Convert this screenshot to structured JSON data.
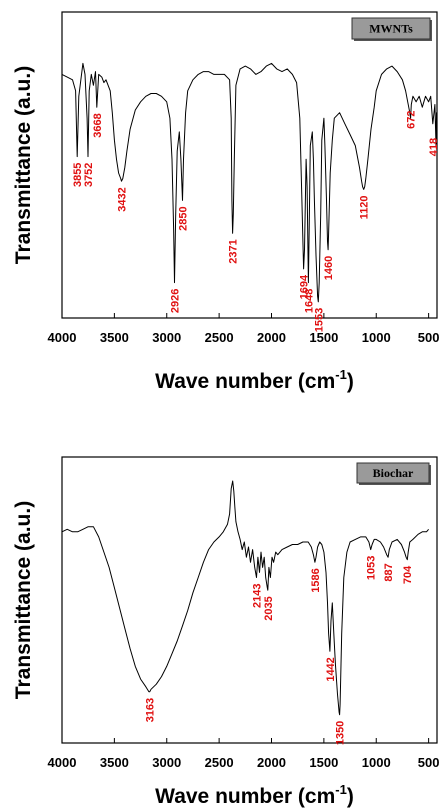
{
  "chart_data": [
    {
      "type": "line",
      "title": "",
      "badge": "MWNTs",
      "xlabel": "Wave number (cm",
      "xlabel_sup": "-1",
      "xlabel_end": ")",
      "ylabel": "Transmittance (a.u.)",
      "xlim": [
        4000,
        420
      ],
      "x_reversed": true,
      "x_ticks": [
        "4000",
        "3500",
        "3000",
        "2500",
        "2000",
        "1500",
        "1000",
        "500"
      ],
      "x_tick_values": [
        4000,
        3500,
        3000,
        2500,
        2000,
        1500,
        1000,
        500
      ],
      "ylim": [
        0,
        1
      ],
      "y_ticks_shown": false,
      "grid": false,
      "line_color": "#000000",
      "label_color": "#e01010",
      "series": [
        {
          "x": [
            4000,
            3950,
            3900,
            3870,
            3855,
            3840,
            3800,
            3780,
            3760,
            3752,
            3740,
            3720,
            3700,
            3680,
            3668,
            3650,
            3620,
            3600,
            3580,
            3560,
            3540,
            3520,
            3500,
            3480,
            3460,
            3440,
            3432,
            3420,
            3400,
            3380,
            3350,
            3300,
            3250,
            3200,
            3150,
            3100,
            3050,
            3000,
            2970,
            2950,
            2935,
            2926,
            2915,
            2900,
            2880,
            2865,
            2850,
            2840,
            2820,
            2800,
            2750,
            2700,
            2650,
            2600,
            2550,
            2500,
            2450,
            2400,
            2385,
            2378,
            2371,
            2365,
            2355,
            2340,
            2300,
            2250,
            2200,
            2150,
            2100,
            2050,
            2000,
            1950,
            1900,
            1850,
            1800,
            1760,
            1730,
            1710,
            1700,
            1694,
            1685,
            1670,
            1660,
            1650,
            1648,
            1640,
            1630,
            1610,
            1600,
            1590,
            1575,
            1560,
            1553,
            1545,
            1530,
            1520,
            1500,
            1490,
            1475,
            1465,
            1460,
            1455,
            1440,
            1420,
            1400,
            1350,
            1300,
            1250,
            1200,
            1160,
            1140,
            1130,
            1120,
            1110,
            1100,
            1080,
            1050,
            1020,
            1000,
            950,
            900,
            850,
            800,
            750,
            720,
            700,
            680,
            672,
            665,
            650,
            620,
            590,
            560,
            530,
            500,
            480,
            460,
            440,
            430,
            425,
            420
          ],
          "y": [
            0.86,
            0.85,
            0.84,
            0.8,
            0.56,
            0.78,
            0.9,
            0.86,
            0.7,
            0.56,
            0.8,
            0.86,
            0.82,
            0.87,
            0.74,
            0.86,
            0.85,
            0.83,
            0.84,
            0.82,
            0.8,
            0.72,
            0.62,
            0.55,
            0.5,
            0.48,
            0.47,
            0.48,
            0.52,
            0.58,
            0.66,
            0.73,
            0.76,
            0.78,
            0.79,
            0.79,
            0.78,
            0.76,
            0.7,
            0.55,
            0.3,
            0.1,
            0.35,
            0.58,
            0.65,
            0.55,
            0.4,
            0.55,
            0.72,
            0.8,
            0.84,
            0.86,
            0.87,
            0.87,
            0.86,
            0.86,
            0.86,
            0.84,
            0.7,
            0.4,
            0.28,
            0.35,
            0.55,
            0.82,
            0.88,
            0.89,
            0.88,
            0.86,
            0.87,
            0.89,
            0.9,
            0.88,
            0.87,
            0.88,
            0.86,
            0.83,
            0.7,
            0.4,
            0.25,
            0.15,
            0.22,
            0.55,
            0.45,
            0.15,
            0.1,
            0.3,
            0.6,
            0.65,
            0.55,
            0.4,
            0.2,
            0.05,
            0.03,
            0.1,
            0.35,
            0.62,
            0.7,
            0.6,
            0.4,
            0.25,
            0.22,
            0.28,
            0.5,
            0.62,
            0.7,
            0.72,
            0.68,
            0.64,
            0.6,
            0.52,
            0.47,
            0.45,
            0.44,
            0.45,
            0.48,
            0.55,
            0.66,
            0.74,
            0.8,
            0.86,
            0.88,
            0.89,
            0.87,
            0.84,
            0.8,
            0.76,
            0.72,
            0.7,
            0.75,
            0.78,
            0.76,
            0.78,
            0.74,
            0.78,
            0.76,
            0.78,
            0.68,
            0.75,
            0.6,
            0.72,
            0.65
          ]
        }
      ],
      "annotations": [
        {
          "text": "3855",
          "x": 3855,
          "y": 0.56
        },
        {
          "text": "3752",
          "x": 3752,
          "y": 0.56
        },
        {
          "text": "3668",
          "x": 3668,
          "y": 0.74
        },
        {
          "text": "3432",
          "x": 3432,
          "y": 0.47
        },
        {
          "text": "2926",
          "x": 2926,
          "y": 0.1
        },
        {
          "text": "2850",
          "x": 2850,
          "y": 0.4
        },
        {
          "text": "2371",
          "x": 2371,
          "y": 0.28
        },
        {
          "text": "1694",
          "x": 1694,
          "y": 0.15
        },
        {
          "text": "1648",
          "x": 1648,
          "y": 0.1
        },
        {
          "text": "1553",
          "x": 1553,
          "y": 0.03
        },
        {
          "text": "1460",
          "x": 1460,
          "y": 0.22
        },
        {
          "text": "1120",
          "x": 1120,
          "y": 0.44
        },
        {
          "text": "672",
          "x": 672,
          "y": 0.75
        },
        {
          "text": "418",
          "x": 420,
          "y": 0.65
        }
      ]
    },
    {
      "type": "line",
      "title": "",
      "badge": "Biochar",
      "xlabel": "Wave number (cm",
      "xlabel_sup": "-1",
      "xlabel_end": ")",
      "ylabel": "Transmittance (a.u.)",
      "xlim": [
        4000,
        420
      ],
      "x_reversed": true,
      "x_ticks": [
        "4000",
        "3500",
        "3000",
        "2500",
        "2000",
        "1500",
        "1000",
        "500"
      ],
      "x_tick_values": [
        4000,
        3500,
        3000,
        2500,
        2000,
        1500,
        1000,
        500
      ],
      "ylim": [
        0,
        1
      ],
      "y_ticks_shown": false,
      "grid": false,
      "line_color": "#000000",
      "label_color": "#e01010",
      "series": [
        {
          "x": [
            4000,
            3950,
            3900,
            3850,
            3800,
            3750,
            3700,
            3650,
            3600,
            3550,
            3500,
            3450,
            3400,
            3350,
            3300,
            3250,
            3200,
            3170,
            3163,
            3150,
            3100,
            3050,
            3000,
            2950,
            2900,
            2850,
            2800,
            2750,
            2700,
            2650,
            2600,
            2550,
            2500,
            2460,
            2420,
            2400,
            2385,
            2370,
            2360,
            2350,
            2340,
            2320,
            2300,
            2280,
            2260,
            2240,
            2220,
            2200,
            2180,
            2160,
            2143,
            2130,
            2115,
            2100,
            2085,
            2070,
            2055,
            2040,
            2035,
            2025,
            2010,
            1995,
            1980,
            1960,
            1940,
            1900,
            1850,
            1800,
            1750,
            1700,
            1650,
            1620,
            1600,
            1586,
            1575,
            1560,
            1540,
            1520,
            1500,
            1480,
            1465,
            1455,
            1442,
            1432,
            1420,
            1405,
            1390,
            1370,
            1355,
            1350,
            1345,
            1330,
            1310,
            1280,
            1250,
            1200,
            1150,
            1100,
            1070,
            1053,
            1040,
            1020,
            1000,
            960,
            930,
            900,
            887,
            875,
            850,
            800,
            760,
            730,
            715,
            704,
            695,
            680,
            650,
            600,
            560,
            520,
            500
          ],
          "y": [
            0.8,
            0.81,
            0.8,
            0.8,
            0.81,
            0.82,
            0.82,
            0.78,
            0.72,
            0.66,
            0.58,
            0.5,
            0.42,
            0.34,
            0.27,
            0.22,
            0.19,
            0.17,
            0.17,
            0.18,
            0.2,
            0.23,
            0.27,
            0.32,
            0.37,
            0.43,
            0.49,
            0.56,
            0.62,
            0.68,
            0.73,
            0.76,
            0.78,
            0.8,
            0.83,
            0.87,
            0.97,
            1.0,
            0.96,
            0.9,
            0.84,
            0.8,
            0.77,
            0.73,
            0.76,
            0.7,
            0.74,
            0.68,
            0.73,
            0.66,
            0.62,
            0.7,
            0.64,
            0.72,
            0.66,
            0.7,
            0.62,
            0.58,
            0.57,
            0.66,
            0.62,
            0.7,
            0.68,
            0.72,
            0.71,
            0.73,
            0.74,
            0.75,
            0.75,
            0.76,
            0.76,
            0.74,
            0.71,
            0.68,
            0.7,
            0.74,
            0.76,
            0.75,
            0.72,
            0.64,
            0.52,
            0.4,
            0.33,
            0.45,
            0.52,
            0.4,
            0.28,
            0.16,
            0.09,
            0.08,
            0.12,
            0.4,
            0.62,
            0.72,
            0.76,
            0.77,
            0.78,
            0.78,
            0.76,
            0.73,
            0.75,
            0.77,
            0.77,
            0.76,
            0.74,
            0.71,
            0.7,
            0.73,
            0.76,
            0.77,
            0.75,
            0.72,
            0.7,
            0.69,
            0.72,
            0.76,
            0.77,
            0.79,
            0.8,
            0.8,
            0.81
          ]
        }
      ],
      "annotations": [
        {
          "text": "2143",
          "x": 2143,
          "y": 0.62
        },
        {
          "text": "2035",
          "x": 2035,
          "y": 0.57
        },
        {
          "text": "1586",
          "x": 1586,
          "y": 0.68
        },
        {
          "text": "1442",
          "x": 1442,
          "y": 0.33
        },
        {
          "text": "1350",
          "x": 1350,
          "y": 0.08
        },
        {
          "text": "3163",
          "x": 3163,
          "y": 0.17
        },
        {
          "text": "1053",
          "x": 1053,
          "y": 0.73
        },
        {
          "text": "887",
          "x": 887,
          "y": 0.7
        },
        {
          "text": "704",
          "x": 704,
          "y": 0.69
        }
      ]
    }
  ]
}
